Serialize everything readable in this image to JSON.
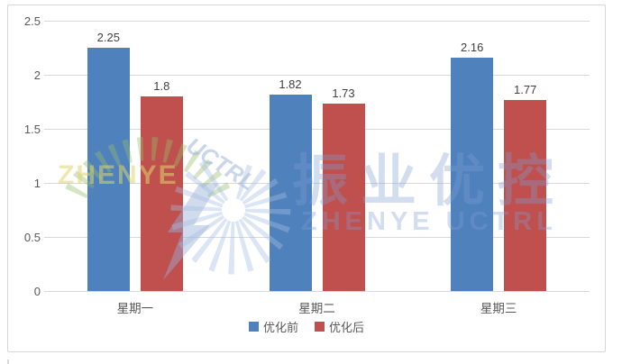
{
  "chart_data": {
    "type": "bar",
    "categories": [
      "星期一",
      "星期二",
      "星期三"
    ],
    "series": [
      {
        "name": "优化前",
        "color": "#4F81BD",
        "values": [
          2.25,
          1.82,
          2.16
        ]
      },
      {
        "name": "优化后",
        "color": "#C0504D",
        "values": [
          1.8,
          1.73,
          1.77
        ]
      }
    ],
    "title": "",
    "xlabel": "",
    "ylabel": "",
    "ylim": [
      0,
      2.5
    ],
    "ytick_labels": [
      "2.5",
      "2",
      "1.5",
      "1",
      "0.5",
      "0"
    ],
    "ytick_values": [
      2.5,
      2,
      1.5,
      1,
      0.5,
      0
    ],
    "grid": true,
    "legend_position": "bottom",
    "data_labels_shown": true
  },
  "watermark": {
    "logo_word": "ZHENYE",
    "script_word": "UCTRL",
    "brand_zh": "振业优控",
    "brand_en": "ZHENYE UCTRL"
  },
  "colors": {
    "series_blue": "#4F81BD",
    "series_red": "#C0504D",
    "gridline": "#d9d9d9",
    "card_border": "#d6d6d6",
    "tick_text": "#595959",
    "data_label_text": "#404040",
    "watermark_blue": "rgba(125,158,212,0.35)",
    "watermark_green": "rgba(150,190,105,0.40)",
    "watermark_yellow": "rgba(222,214,110,0.55)"
  }
}
